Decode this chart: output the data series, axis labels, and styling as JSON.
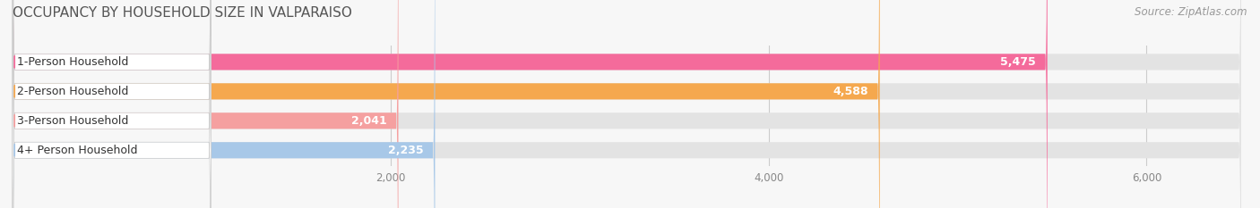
{
  "title": "OCCUPANCY BY HOUSEHOLD SIZE IN VALPARAISO",
  "source": "Source: ZipAtlas.com",
  "categories": [
    "1-Person Household",
    "2-Person Household",
    "3-Person Household",
    "4+ Person Household"
  ],
  "values": [
    5475,
    4588,
    2041,
    2235
  ],
  "bar_colors": [
    "#F46B9B",
    "#F5A84E",
    "#F5A0A0",
    "#A8C8E8"
  ],
  "xlim_max": 6500,
  "xticks": [
    2000,
    4000,
    6000
  ],
  "xtick_labels": [
    "2,000",
    "4,000",
    "6,000"
  ],
  "background_color": "#f7f7f7",
  "bar_bg_color": "#e3e3e3",
  "label_bg_color": "#ffffff",
  "title_fontsize": 11,
  "label_fontsize": 9,
  "value_fontsize": 9,
  "source_fontsize": 8.5,
  "value_color_inside": "#ffffff",
  "value_color_outside": "#555555"
}
